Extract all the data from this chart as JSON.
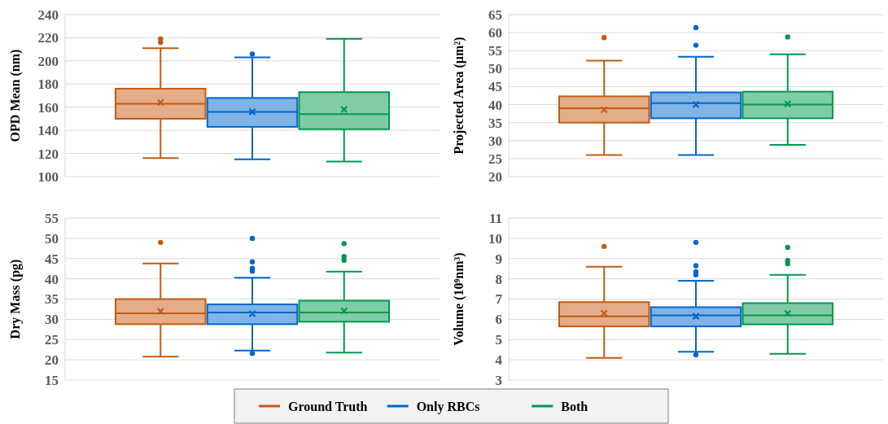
{
  "chart_data": [
    {
      "type": "box",
      "ylabel": "OPD Mean (nm)",
      "categories": [
        null
      ],
      "ylim": [
        100,
        240
      ],
      "yticks": [
        100,
        120,
        140,
        160,
        180,
        200,
        220,
        240
      ],
      "grid": "y",
      "legend": "bottom",
      "series": [
        {
          "name": "Ground Truth",
          "color": "#c55a11",
          "boxes": [
            {
              "low": 116,
              "q1": 150,
              "median": 163,
              "q3": 176,
              "high": 211,
              "mean": 164,
              "outliers": [
                216,
                219
              ]
            }
          ]
        },
        {
          "name": "Only RBCs",
          "color": "#0066cc",
          "boxes": [
            {
              "low": 115,
              "q1": 143,
              "median": 156,
              "q3": 168,
              "high": 203,
              "mean": 156,
              "outliers": [
                206
              ]
            }
          ]
        },
        {
          "name": "Both",
          "color": "#00994c",
          "boxes": [
            {
              "low": 113,
              "q1": 141,
              "median": 154,
              "q3": 173,
              "high": 219,
              "mean": 158
            }
          ]
        }
      ]
    },
    {
      "type": "box",
      "ylabel": "Projected Area (µm²)",
      "categories": [
        null
      ],
      "ylim": [
        20,
        65
      ],
      "yticks": [
        20,
        25,
        30,
        35,
        40,
        45,
        50,
        55,
        60,
        65
      ],
      "grid": "y",
      "series": [
        {
          "color": "#c55a11",
          "boxes": [
            {
              "low": 26,
              "q1": 35,
              "median": 39,
              "q3": 42.3,
              "high": 52.2,
              "mean": 38.6,
              "outliers": [
                58.6
              ]
            }
          ]
        },
        {
          "color": "#0066cc",
          "boxes": [
            {
              "low": 26,
              "q1": 36.2,
              "median": 40.4,
              "q3": 43.4,
              "high": 53.3,
              "mean": 40,
              "outliers": [
                56.5,
                61.4
              ]
            }
          ]
        },
        {
          "color": "#00994c",
          "boxes": [
            {
              "low": 28.8,
              "q1": 36.2,
              "median": 40,
              "q3": 43.6,
              "high": 54,
              "mean": 40.2,
              "outliers": [
                58.8
              ]
            }
          ]
        }
      ]
    },
    {
      "type": "box",
      "ylabel": "Dry Mass (pg)",
      "categories": [
        null
      ],
      "ylim": [
        15,
        55
      ],
      "yticks": [
        15,
        20,
        25,
        30,
        35,
        40,
        45,
        50,
        55
      ],
      "grid": "y",
      "series": [
        {
          "color": "#c55a11",
          "boxes": [
            {
              "low": 20.8,
              "q1": 28.8,
              "median": 31.5,
              "q3": 35,
              "high": 43.8,
              "mean": 32,
              "outliers": [
                49
              ]
            }
          ]
        },
        {
          "color": "#0066cc",
          "boxes": [
            {
              "low": 22.3,
              "q1": 28.8,
              "median": 31.7,
              "q3": 33.7,
              "high": 40.3,
              "mean": 31.4,
              "outliers": [
                21.6,
                41.9,
                42.6,
                44.2,
                50
              ]
            }
          ]
        },
        {
          "color": "#00994c",
          "boxes": [
            {
              "low": 21.8,
              "q1": 29.4,
              "median": 31.7,
              "q3": 34.6,
              "high": 41.8,
              "mean": 32.1,
              "outliers": [
                44.6,
                45.5,
                48.7
              ]
            }
          ]
        }
      ]
    },
    {
      "type": "box",
      "ylabel": "Volume (10⁹nm³)",
      "categories": [
        null
      ],
      "ylim": [
        3,
        11
      ],
      "yticks": [
        3,
        4,
        5,
        6,
        7,
        8,
        9,
        10,
        11
      ],
      "grid": "y",
      "series": [
        {
          "color": "#c55a11",
          "boxes": [
            {
              "low": 4.1,
              "q1": 5.65,
              "median": 6.15,
              "q3": 6.85,
              "high": 8.6,
              "mean": 6.3,
              "outliers": [
                9.6
              ]
            }
          ]
        },
        {
          "color": "#0066cc",
          "boxes": [
            {
              "low": 4.4,
              "q1": 5.65,
              "median": 6.2,
              "q3": 6.6,
              "high": 7.9,
              "mean": 6.15,
              "outliers": [
                4.25,
                8.2,
                8.35,
                8.65,
                9.8
              ]
            }
          ]
        },
        {
          "color": "#00994c",
          "boxes": [
            {
              "low": 4.3,
              "q1": 5.75,
              "median": 6.2,
              "q3": 6.8,
              "high": 8.2,
              "mean": 6.3,
              "outliers": [
                8.75,
                8.9,
                9.55
              ]
            }
          ]
        }
      ]
    }
  ]
}
